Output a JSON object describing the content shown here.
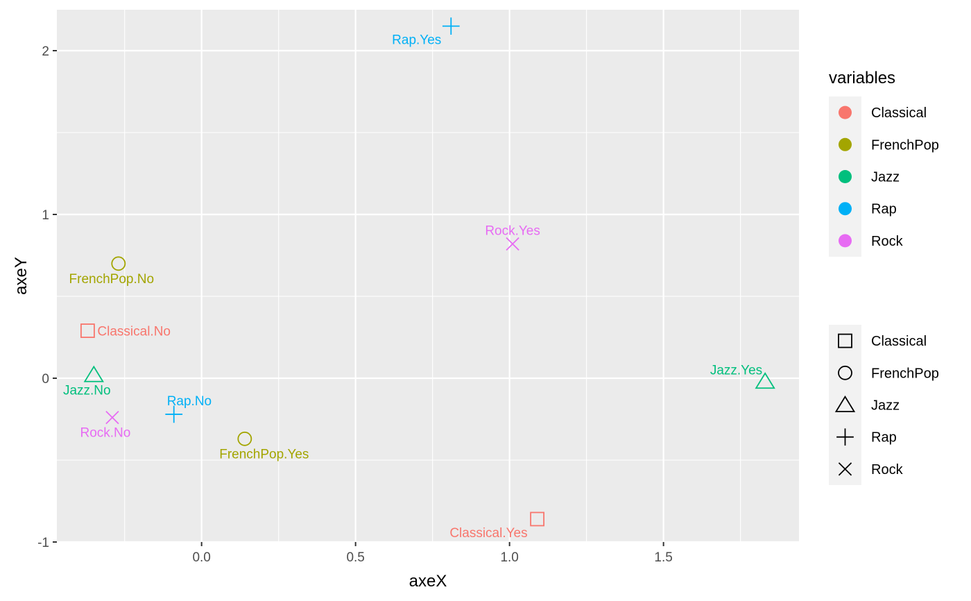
{
  "chart_data": {
    "type": "scatter",
    "xlabel": "axeX",
    "ylabel": "axeY",
    "xlim": [
      -0.47,
      1.94
    ],
    "ylim": [
      -1.0,
      2.25
    ],
    "xticks": [
      {
        "value": 0.0,
        "label": "0.0"
      },
      {
        "value": 0.5,
        "label": "0.5"
      },
      {
        "value": 1.0,
        "label": "1.0"
      },
      {
        "value": 1.5,
        "label": "1.5"
      }
    ],
    "yticks": [
      {
        "value": -1,
        "label": "-1"
      },
      {
        "value": 0,
        "label": "0"
      },
      {
        "value": 1,
        "label": "1"
      },
      {
        "value": 2,
        "label": "2"
      }
    ],
    "grid": true,
    "legend_position": "right",
    "colors": {
      "Classical": "#F8766D",
      "FrenchPop": "#A3A500",
      "Jazz": "#00BF7D",
      "Rap": "#00B0F6",
      "Rock": "#E76BF3"
    },
    "shapes": {
      "Classical": "square",
      "FrenchPop": "circle",
      "Jazz": "triangle",
      "Rap": "plus",
      "Rock": "cross"
    },
    "points": [
      {
        "label": "Classical.No",
        "variable": "Classical",
        "x": -0.37,
        "y": 0.29,
        "label_pos": "right"
      },
      {
        "label": "Classical.Yes",
        "variable": "Classical",
        "x": 1.09,
        "y": -0.86,
        "label_pos": "below-left"
      },
      {
        "label": "FrenchPop.No",
        "variable": "FrenchPop",
        "x": -0.27,
        "y": 0.7,
        "label_pos": "below"
      },
      {
        "label": "FrenchPop.Yes",
        "variable": "FrenchPop",
        "x": 0.14,
        "y": -0.37,
        "label_pos": "below-right"
      },
      {
        "label": "Jazz.No",
        "variable": "Jazz",
        "x": -0.35,
        "y": 0.02,
        "label_pos": "below"
      },
      {
        "label": "Jazz.Yes",
        "variable": "Jazz",
        "x": 1.83,
        "y": -0.02,
        "label_pos": "above-left"
      },
      {
        "label": "Rap.No",
        "variable": "Rap",
        "x": -0.09,
        "y": -0.22,
        "label_pos": "above-right"
      },
      {
        "label": "Rap.Yes",
        "variable": "Rap",
        "x": 0.81,
        "y": 2.15,
        "label_pos": "below-left"
      },
      {
        "label": "Rock.No",
        "variable": "Rock",
        "x": -0.29,
        "y": -0.24,
        "label_pos": "below"
      },
      {
        "label": "Rock.Yes",
        "variable": "Rock",
        "x": 1.01,
        "y": 0.82,
        "label_pos": "above"
      }
    ],
    "legends": [
      {
        "kind": "color",
        "title": "variables",
        "entries": [
          "Classical",
          "FrenchPop",
          "Jazz",
          "Rap",
          "Rock"
        ]
      },
      {
        "kind": "shape",
        "title": "",
        "entries": [
          "Classical",
          "FrenchPop",
          "Jazz",
          "Rap",
          "Rock"
        ]
      }
    ]
  }
}
